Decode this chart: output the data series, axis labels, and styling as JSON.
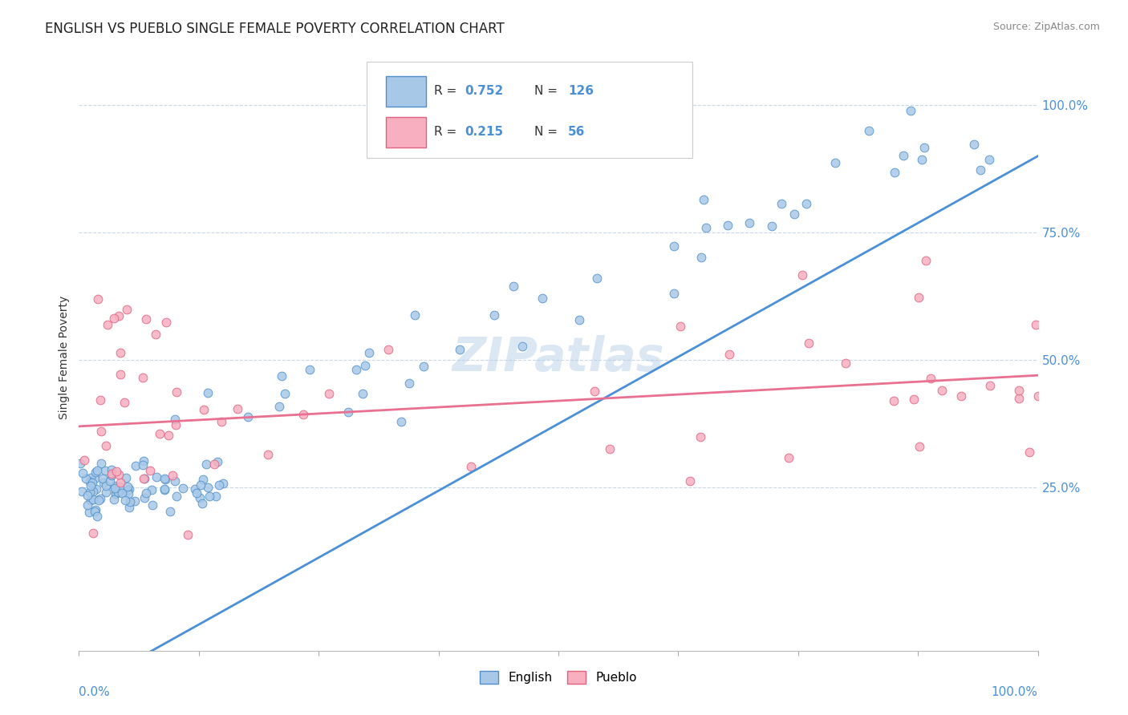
{
  "title": "ENGLISH VS PUEBLO SINGLE FEMALE POVERTY CORRELATION CHART",
  "source": "Source: ZipAtlas.com",
  "ylabel": "Single Female Poverty",
  "english_color": "#a8c8e8",
  "english_edge_color": "#5090c8",
  "pueblo_color": "#f8b0c0",
  "pueblo_edge_color": "#e06080",
  "english_line_color": "#4a90d9",
  "pueblo_line_color": "#e87090",
  "ytick_color": "#4a90d9",
  "background_color": "#ffffff",
  "grid_color": "#c8d8e8",
  "title_fontsize": 12,
  "axis_label_fontsize": 10,
  "watermark": "ZIPatlas",
  "watermark_color": "#b8d0e8"
}
